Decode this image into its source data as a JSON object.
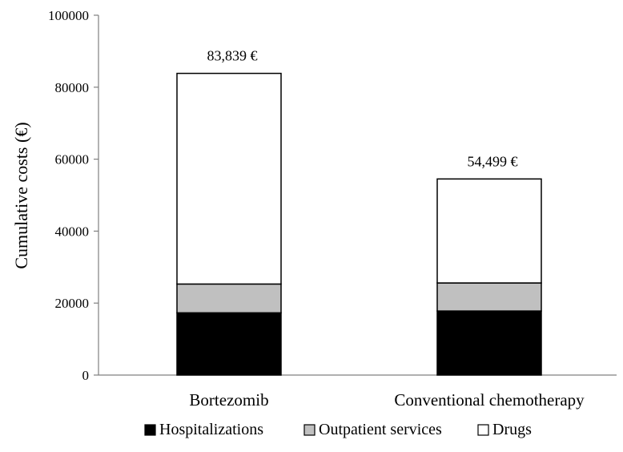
{
  "chart_data": {
    "type": "bar",
    "stacked": true,
    "categories": [
      "Bortezomib",
      "Conventional chemotherapy"
    ],
    "series": [
      {
        "name": "Hospitalizations",
        "values": [
          17300,
          17800
        ],
        "color": "#000000"
      },
      {
        "name": "Outpatient services",
        "values": [
          8000,
          7800
        ],
        "color": "#c0c0c0"
      },
      {
        "name": "Drugs",
        "values": [
          58539,
          28899
        ],
        "color": "#ffffff"
      }
    ],
    "totals": [
      83839,
      54499
    ],
    "total_labels": [
      "83,839 €",
      "54,499 €"
    ],
    "ylabel": "Cumulative costs (€)",
    "xlabel": "",
    "ylim": [
      0,
      100000
    ],
    "yticks": [
      0,
      20000,
      40000,
      60000,
      80000,
      100000
    ],
    "ytick_labels": [
      "0",
      "20000",
      "40000",
      "60000",
      "80000",
      "100000"
    ],
    "grid": false,
    "legend_position": "bottom"
  }
}
